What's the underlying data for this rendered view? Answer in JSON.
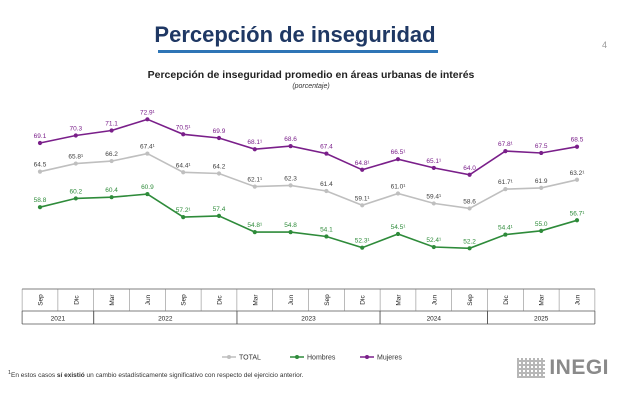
{
  "page": {
    "title": "Percepción de inseguridad",
    "page_number": "4",
    "footnote_pre": "En estos casos ",
    "footnote_bold": "sí existió",
    "footnote_post": " un cambio estadísticamente significativo con respecto del ejercicio anterior.",
    "footnote_marker": "1",
    "logo_text": "INEGI"
  },
  "chart_data": {
    "type": "line",
    "title": "Percepción de inseguridad promedio en áreas urbanas de interés",
    "subtitle": "(porcentaje)",
    "categories": [
      "Sep",
      "Dic",
      "Mar",
      "Jun",
      "Sep",
      "Dic",
      "Mar",
      "Jun",
      "Sep",
      "Dic",
      "Mar",
      "Jun",
      "Sep",
      "Dic",
      "Mar",
      "Jun"
    ],
    "years": [
      {
        "label": "2021",
        "start": 0,
        "end": 1
      },
      {
        "label": "2022",
        "start": 2,
        "end": 5
      },
      {
        "label": "2023",
        "start": 6,
        "end": 9
      },
      {
        "label": "2024",
        "start": 10,
        "end": 12
      },
      {
        "label": "2025",
        "start": 13,
        "end": 15
      }
    ],
    "ylim": [
      50,
      76
    ],
    "grid": false,
    "legend_position": "bottom",
    "series": [
      {
        "name": "TOTAL",
        "color": "#bfbfbf",
        "values": [
          64.5,
          65.8,
          66.2,
          67.4,
          64.4,
          64.2,
          62.1,
          62.3,
          61.4,
          59.1,
          61.0,
          59.4,
          58.6,
          61.7,
          61.9,
          63.2
        ],
        "labels": [
          "64.5",
          "65.8¹",
          "66.2",
          "67.4¹",
          "64.4¹",
          "64.2",
          "62.1¹",
          "62.3",
          "61.4",
          "59.1¹",
          "61.0¹",
          "59.4¹",
          "58.6",
          "61.7¹",
          "61.9",
          "63.2¹"
        ]
      },
      {
        "name": "Hombres",
        "color": "#2e8b3a",
        "values": [
          58.8,
          60.2,
          60.4,
          60.9,
          57.2,
          57.4,
          54.8,
          54.8,
          54.1,
          52.3,
          54.5,
          52.4,
          52.2,
          54.4,
          55.0,
          56.7
        ],
        "labels": [
          "58.8",
          "60.2",
          "60.4",
          "60.9",
          "57.2¹",
          "57.4",
          "54.8¹",
          "54.8",
          "54.1",
          "52.3¹",
          "54.5¹",
          "52.4¹",
          "52.2",
          "54.4¹",
          "55.0",
          "56.7¹"
        ]
      },
      {
        "name": "Mujeres",
        "color": "#7a1f8a",
        "values": [
          69.1,
          70.3,
          71.1,
          72.9,
          70.5,
          69.9,
          68.1,
          68.6,
          67.4,
          64.8,
          66.5,
          65.1,
          64.0,
          67.8,
          67.5,
          68.5
        ],
        "labels": [
          "69.1",
          "70.3",
          "71.1",
          "72.9¹",
          "70.5¹",
          "69.9",
          "68.1¹",
          "68.6",
          "67.4",
          "64.8¹",
          "66.5¹",
          "65.1¹",
          "64.0",
          "67.8¹",
          "67.5",
          "68.5"
        ]
      }
    ]
  }
}
